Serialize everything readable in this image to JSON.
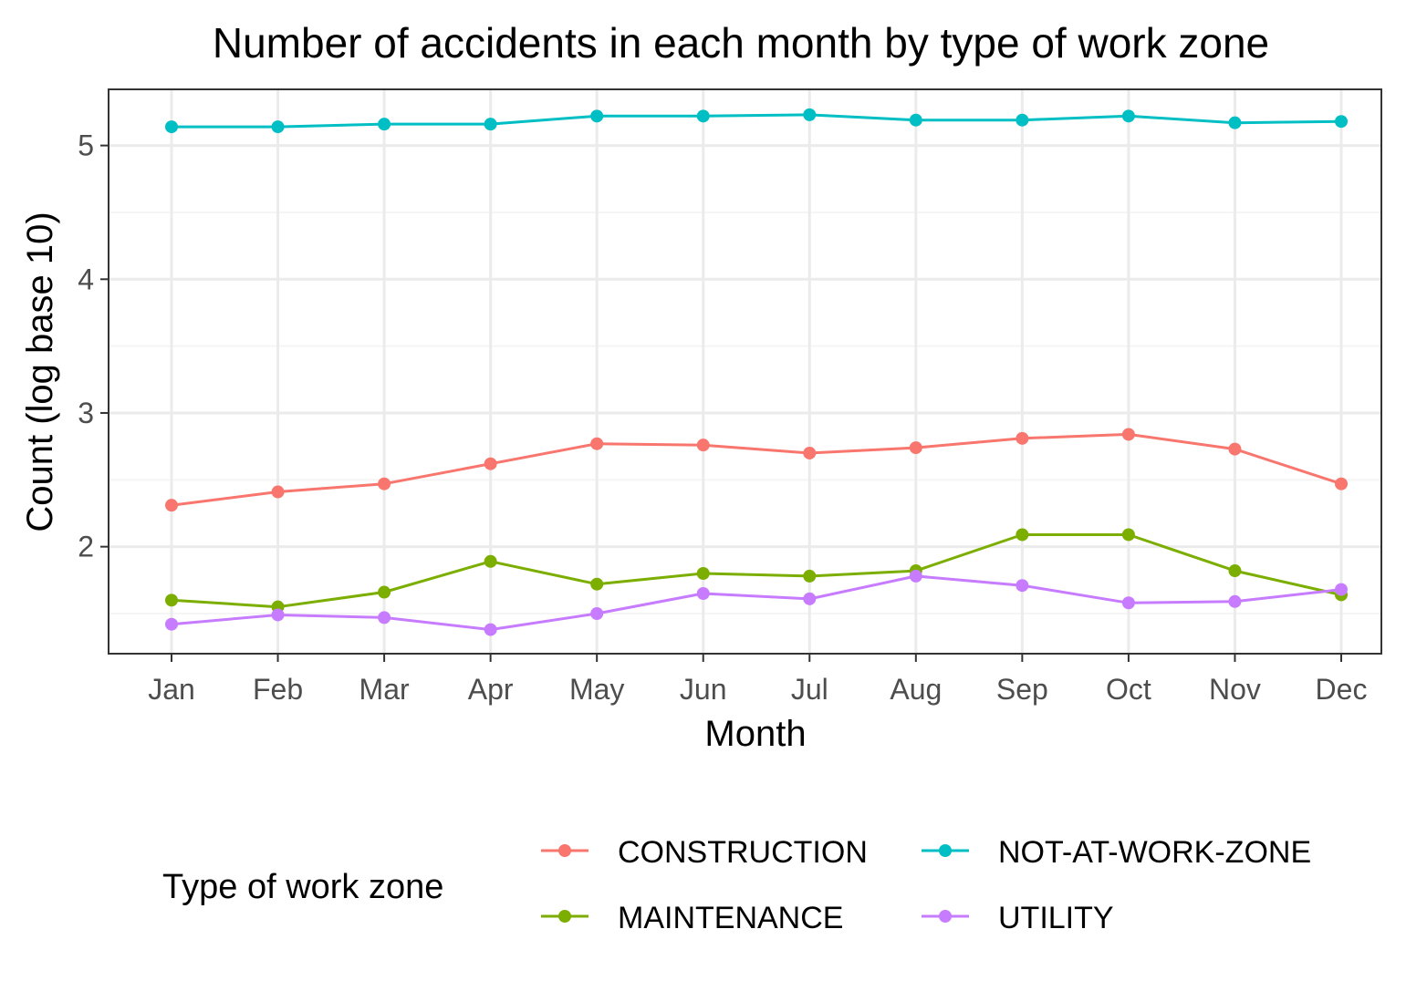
{
  "chart_data": {
    "type": "line",
    "title": "Number of accidents in each month by type of work zone",
    "xlabel": "Month",
    "ylabel": "Count (log base 10)",
    "categories": [
      "Jan",
      "Feb",
      "Mar",
      "Apr",
      "May",
      "Jun",
      "Jul",
      "Aug",
      "Sep",
      "Oct",
      "Nov",
      "Dec"
    ],
    "ylim": [
      1.2,
      5.42
    ],
    "yticks": [
      2,
      3,
      4,
      5
    ],
    "y_minor_gridlines": [
      2.5,
      3.5,
      4.5,
      1.5
    ],
    "grid": true,
    "legend": {
      "title": "Type of work zone",
      "position": "bottom"
    },
    "series": [
      {
        "name": "CONSTRUCTION",
        "color": "#F8766D",
        "values": [
          2.31,
          2.41,
          2.47,
          2.62,
          2.77,
          2.76,
          2.7,
          2.74,
          2.81,
          2.84,
          2.73,
          2.47
        ]
      },
      {
        "name": "NOT-AT-WORK-ZONE",
        "color": "#00BFC4",
        "values": [
          5.14,
          5.14,
          5.16,
          5.16,
          5.22,
          5.22,
          5.23,
          5.19,
          5.19,
          5.22,
          5.17,
          5.18
        ]
      },
      {
        "name": "MAINTENANCE",
        "color": "#7CAE00",
        "values": [
          1.6,
          1.55,
          1.66,
          1.89,
          1.72,
          1.8,
          1.78,
          1.82,
          2.09,
          2.09,
          1.82,
          1.64
        ]
      },
      {
        "name": "UTILITY",
        "color": "#C77CFF",
        "values": [
          1.42,
          1.49,
          1.47,
          1.38,
          1.5,
          1.65,
          1.61,
          1.78,
          1.71,
          1.58,
          1.59,
          1.68
        ]
      }
    ]
  },
  "colors": {
    "panel_border": "#333333",
    "grid_major": "#ebebeb",
    "grid_minor": "#f5f5f5"
  }
}
